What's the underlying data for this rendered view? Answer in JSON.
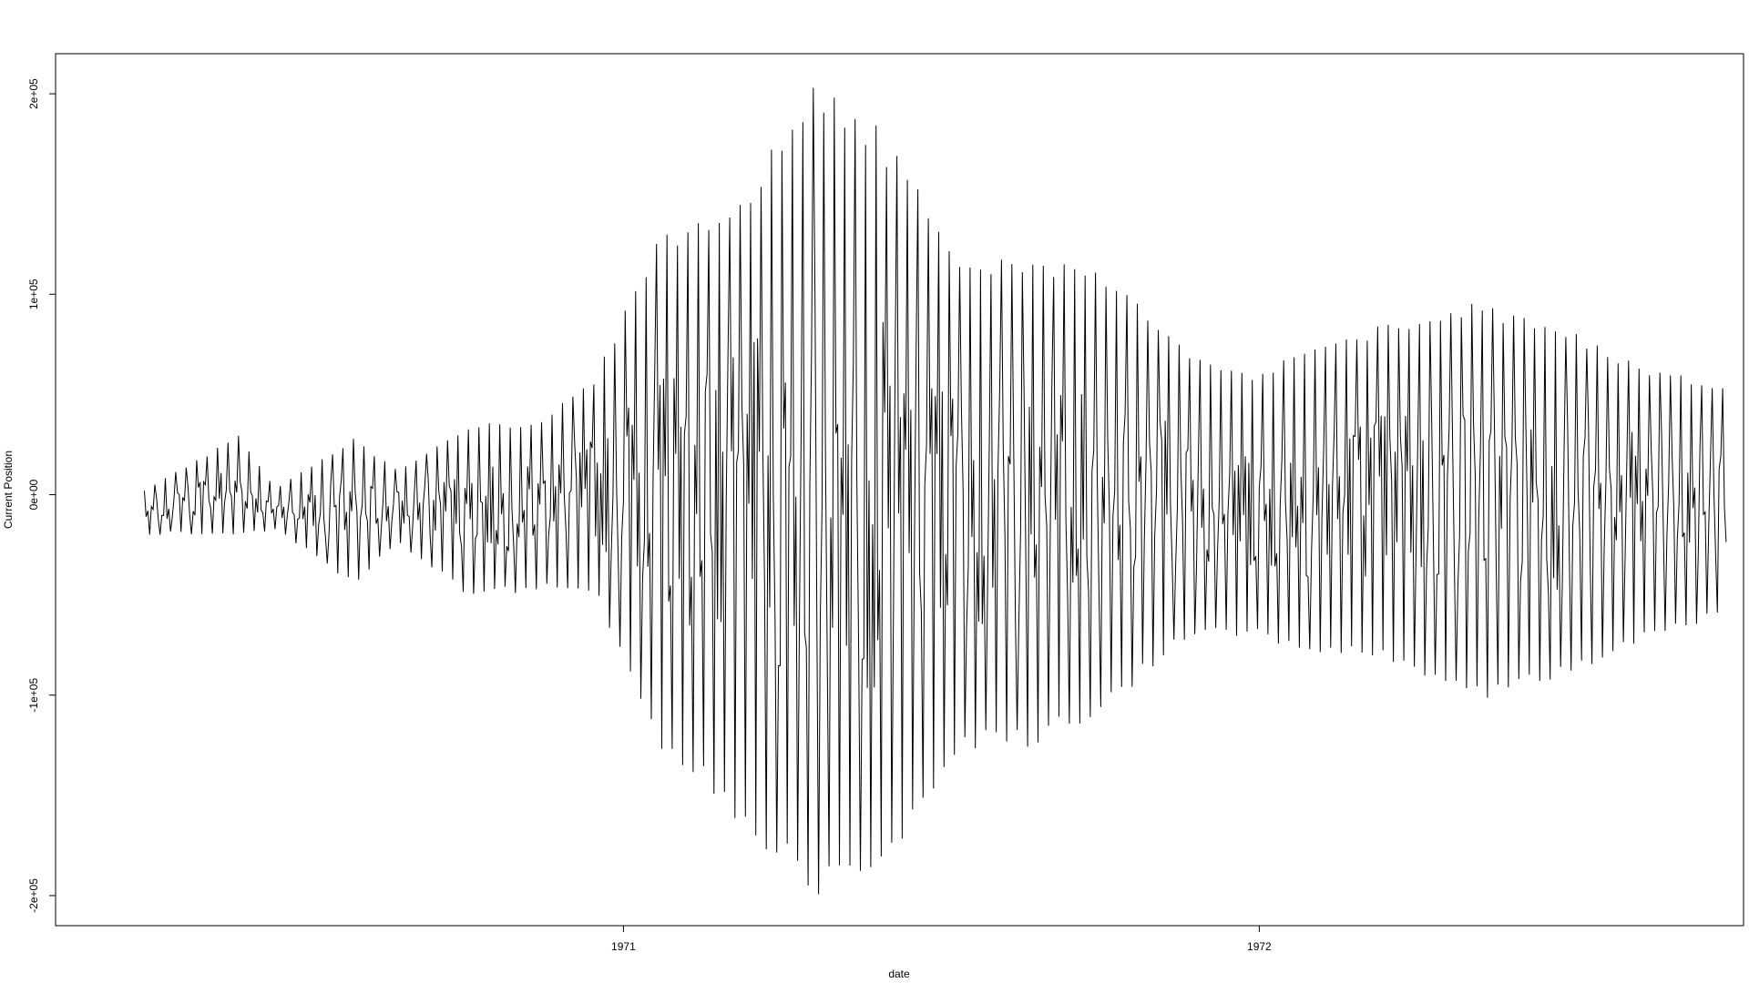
{
  "chart_data": {
    "type": "line",
    "title": "",
    "xlabel": "date",
    "ylabel": "Current Position",
    "x_tick_labels": [
      "1971",
      "1972"
    ],
    "y_tick_labels": [
      "-2e+05",
      "-1e+05",
      "0e+00",
      "1e+05",
      "2e+05"
    ],
    "y_ticks": [
      -200000,
      -100000,
      0,
      100000,
      200000
    ],
    "xlim": [
      "1970-02-09",
      "1972-10-05"
    ],
    "ylim": [
      -215000,
      220000
    ],
    "grid": false,
    "legend": "none",
    "line_color": "#000000",
    "series_note": "dense daily oscillation between an upper and lower envelope",
    "envelope": {
      "x": [
        "1970-04-01",
        "1970-05-25",
        "1970-06-15",
        "1970-07-30",
        "1970-08-25",
        "1970-10-05",
        "1970-11-10",
        "1970-12-15",
        "1971-01-20",
        "1971-03-10",
        "1971-04-20",
        "1971-05-25",
        "1971-07-15",
        "1971-08-20",
        "1971-09-30",
        "1971-11-20",
        "1972-01-01",
        "1972-01-20",
        "1972-03-15",
        "1972-05-01",
        "1972-06-20",
        "1972-08-10",
        "1972-09-25"
      ],
      "upper": [
        2000,
        30000,
        3000,
        28000,
        12000,
        36000,
        36000,
        57000,
        130000,
        150000,
        205000,
        187000,
        118000,
        118000,
        117000,
        73000,
        60000,
        72000,
        86000,
        97000,
        86000,
        64000,
        54000
      ],
      "lower": [
        -20000,
        -20000,
        -18000,
        -45000,
        -25000,
        -52000,
        -48000,
        -48000,
        -125000,
        -165000,
        -200000,
        -200000,
        -127000,
        -127000,
        -112000,
        -72000,
        -70000,
        -80000,
        -83000,
        -104000,
        -93000,
        -72000,
        -60000
      ]
    }
  }
}
